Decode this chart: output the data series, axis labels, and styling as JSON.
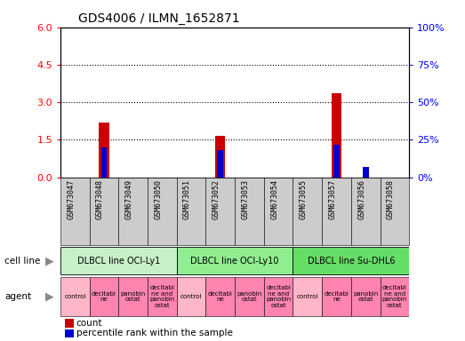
{
  "title": "GDS4006 / ILMN_1652871",
  "samples": [
    "GSM673047",
    "GSM673048",
    "GSM673049",
    "GSM673050",
    "GSM673051",
    "GSM673052",
    "GSM673053",
    "GSM673054",
    "GSM673055",
    "GSM673057",
    "GSM673056",
    "GSM673058"
  ],
  "count_values": [
    0,
    2.2,
    0,
    0,
    0,
    1.65,
    0,
    0,
    0,
    3.35,
    0,
    0
  ],
  "percentile_values": [
    0,
    20,
    0,
    0,
    0,
    18,
    0,
    0,
    0,
    22,
    7,
    0
  ],
  "ylim_left": [
    0,
    6
  ],
  "ylim_right": [
    0,
    100
  ],
  "yticks_left": [
    0,
    1.5,
    3,
    4.5,
    6
  ],
  "yticks_right": [
    0,
    25,
    50,
    75,
    100
  ],
  "cell_lines": [
    {
      "label": "DLBCL line OCI-Ly1",
      "start": 0,
      "end": 4,
      "color": "#C8F0C8"
    },
    {
      "label": "DLBCL line OCI-Ly10",
      "start": 4,
      "end": 8,
      "color": "#90EE90"
    },
    {
      "label": "DLBCL line Su-DHL6",
      "start": 8,
      "end": 12,
      "color": "#66DD66"
    }
  ],
  "agent_labels": [
    "control",
    "decitabi\nne",
    "panobin\nostat",
    "decitabi\nne and\npanobin\nostat",
    "control",
    "decitabi\nne",
    "panobin\nostat",
    "decitabi\nne and\npanobin\nostat",
    "control",
    "decitabi\nne",
    "panobin\nostat",
    "decitabi\nne and\npanobin\nostat"
  ],
  "control_color": "#FFB6C8",
  "other_agent_color": "#FF85B0",
  "bar_color_red": "#CC0000",
  "bar_color_blue": "#0000CC",
  "sample_bg_color": "#CCCCCC",
  "sample_bg_alt_color": "#DDDDDD",
  "grid_dotted_ticks": [
    1.5,
    3.0,
    4.5
  ]
}
